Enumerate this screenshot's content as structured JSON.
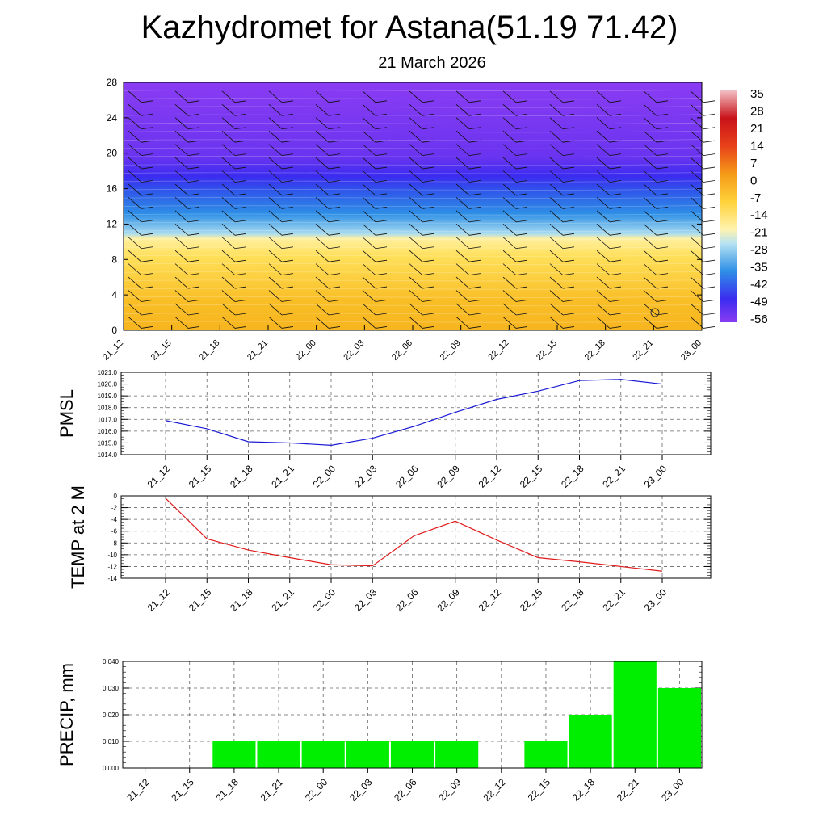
{
  "header": {
    "title": "Kazhydromet for Astana(51.19 71.42)",
    "date": "21 March 2026"
  },
  "times": [
    "21_12",
    "21_15",
    "21_18",
    "21_21",
    "22_00",
    "22_03",
    "22_06",
    "22_09",
    "22_12",
    "22_15",
    "22_18",
    "22_21",
    "23_00"
  ],
  "chart_data": [
    {
      "id": "cross-section",
      "type": "heatmap",
      "title": "",
      "ylim": [
        0,
        28
      ],
      "yticks": [
        0,
        4,
        8,
        12,
        16,
        20,
        24,
        28
      ],
      "colorbar": {
        "labels": [
          "35",
          "28",
          "21",
          "14",
          "7",
          "0",
          "-7",
          "-14",
          "-21",
          "-28",
          "-35",
          "-42",
          "-49",
          "-56"
        ]
      },
      "colors": {
        "warm_bottom": "#f7b51f",
        "warm_top": "#ffe05a",
        "cold_light": "#a9dcf0",
        "cold_mid": "#2e8fe6",
        "cold_deep": "#3b2cf0",
        "upper": "#8a3cf2"
      }
    },
    {
      "id": "pmsl",
      "type": "line",
      "ylabel": "PMSL",
      "ylim": [
        1014.0,
        1021.0
      ],
      "yticks": [
        "1014.0",
        "1015.0",
        "1016.0",
        "1017.0",
        "1018.0",
        "1019.0",
        "1020.0",
        "1021.0"
      ],
      "values": [
        1016.9,
        1016.2,
        1015.1,
        1015.0,
        1014.8,
        1015.4,
        1016.4,
        1017.6,
        1018.7,
        1019.4,
        1020.3,
        1020.4,
        1020.0
      ],
      "color": "#1a1ad6"
    },
    {
      "id": "temp",
      "type": "line",
      "ylabel": "TEMP at 2 M",
      "ylim": [
        -14,
        0
      ],
      "yticks": [
        "0",
        "-2",
        "-4",
        "-6",
        "-8",
        "-10",
        "-12",
        "-14"
      ],
      "values": [
        -0.4,
        -7.3,
        -9.2,
        -10.5,
        -11.7,
        -11.9,
        -6.8,
        -4.3,
        -7.5,
        -10.5,
        -11.2,
        -12.0,
        -12.8
      ],
      "color": "#e01b1b"
    },
    {
      "id": "precip",
      "type": "bar",
      "ylabel": "PRECIP, mm",
      "ylim": [
        0,
        0.04
      ],
      "yticks": [
        "0.000",
        "0.010",
        "0.020",
        "0.030",
        "0.040"
      ],
      "values": [
        0,
        0,
        0.01,
        0.01,
        0.01,
        0.01,
        0.01,
        0.01,
        0,
        0.01,
        0.02,
        0.04,
        0.03
      ],
      "color": "#00ee00"
    }
  ]
}
